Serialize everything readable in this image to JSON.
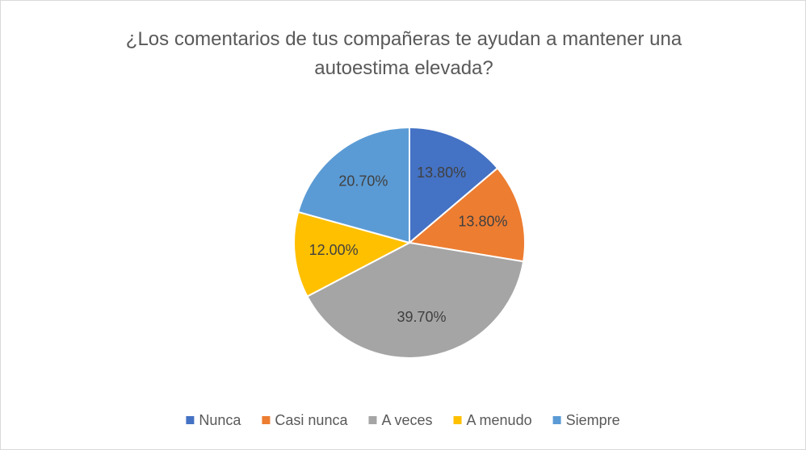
{
  "chart_data": {
    "type": "pie",
    "title": "¿Los comentarios de tus compañeras te ayudan a mantener una autoestima elevada?",
    "categories": [
      "Nunca",
      "Casi nunca",
      "A veces",
      "A menudo",
      "Siempre"
    ],
    "values": [
      13.8,
      13.8,
      39.7,
      12.0,
      20.7
    ],
    "value_labels": [
      "13.80%",
      "13.80%",
      "39.70%",
      "12.00%",
      "20.70%"
    ],
    "colors": [
      "#4472c4",
      "#ed7d31",
      "#a5a5a5",
      "#ffc000",
      "#5b9bd5"
    ],
    "legend": "bottom"
  }
}
